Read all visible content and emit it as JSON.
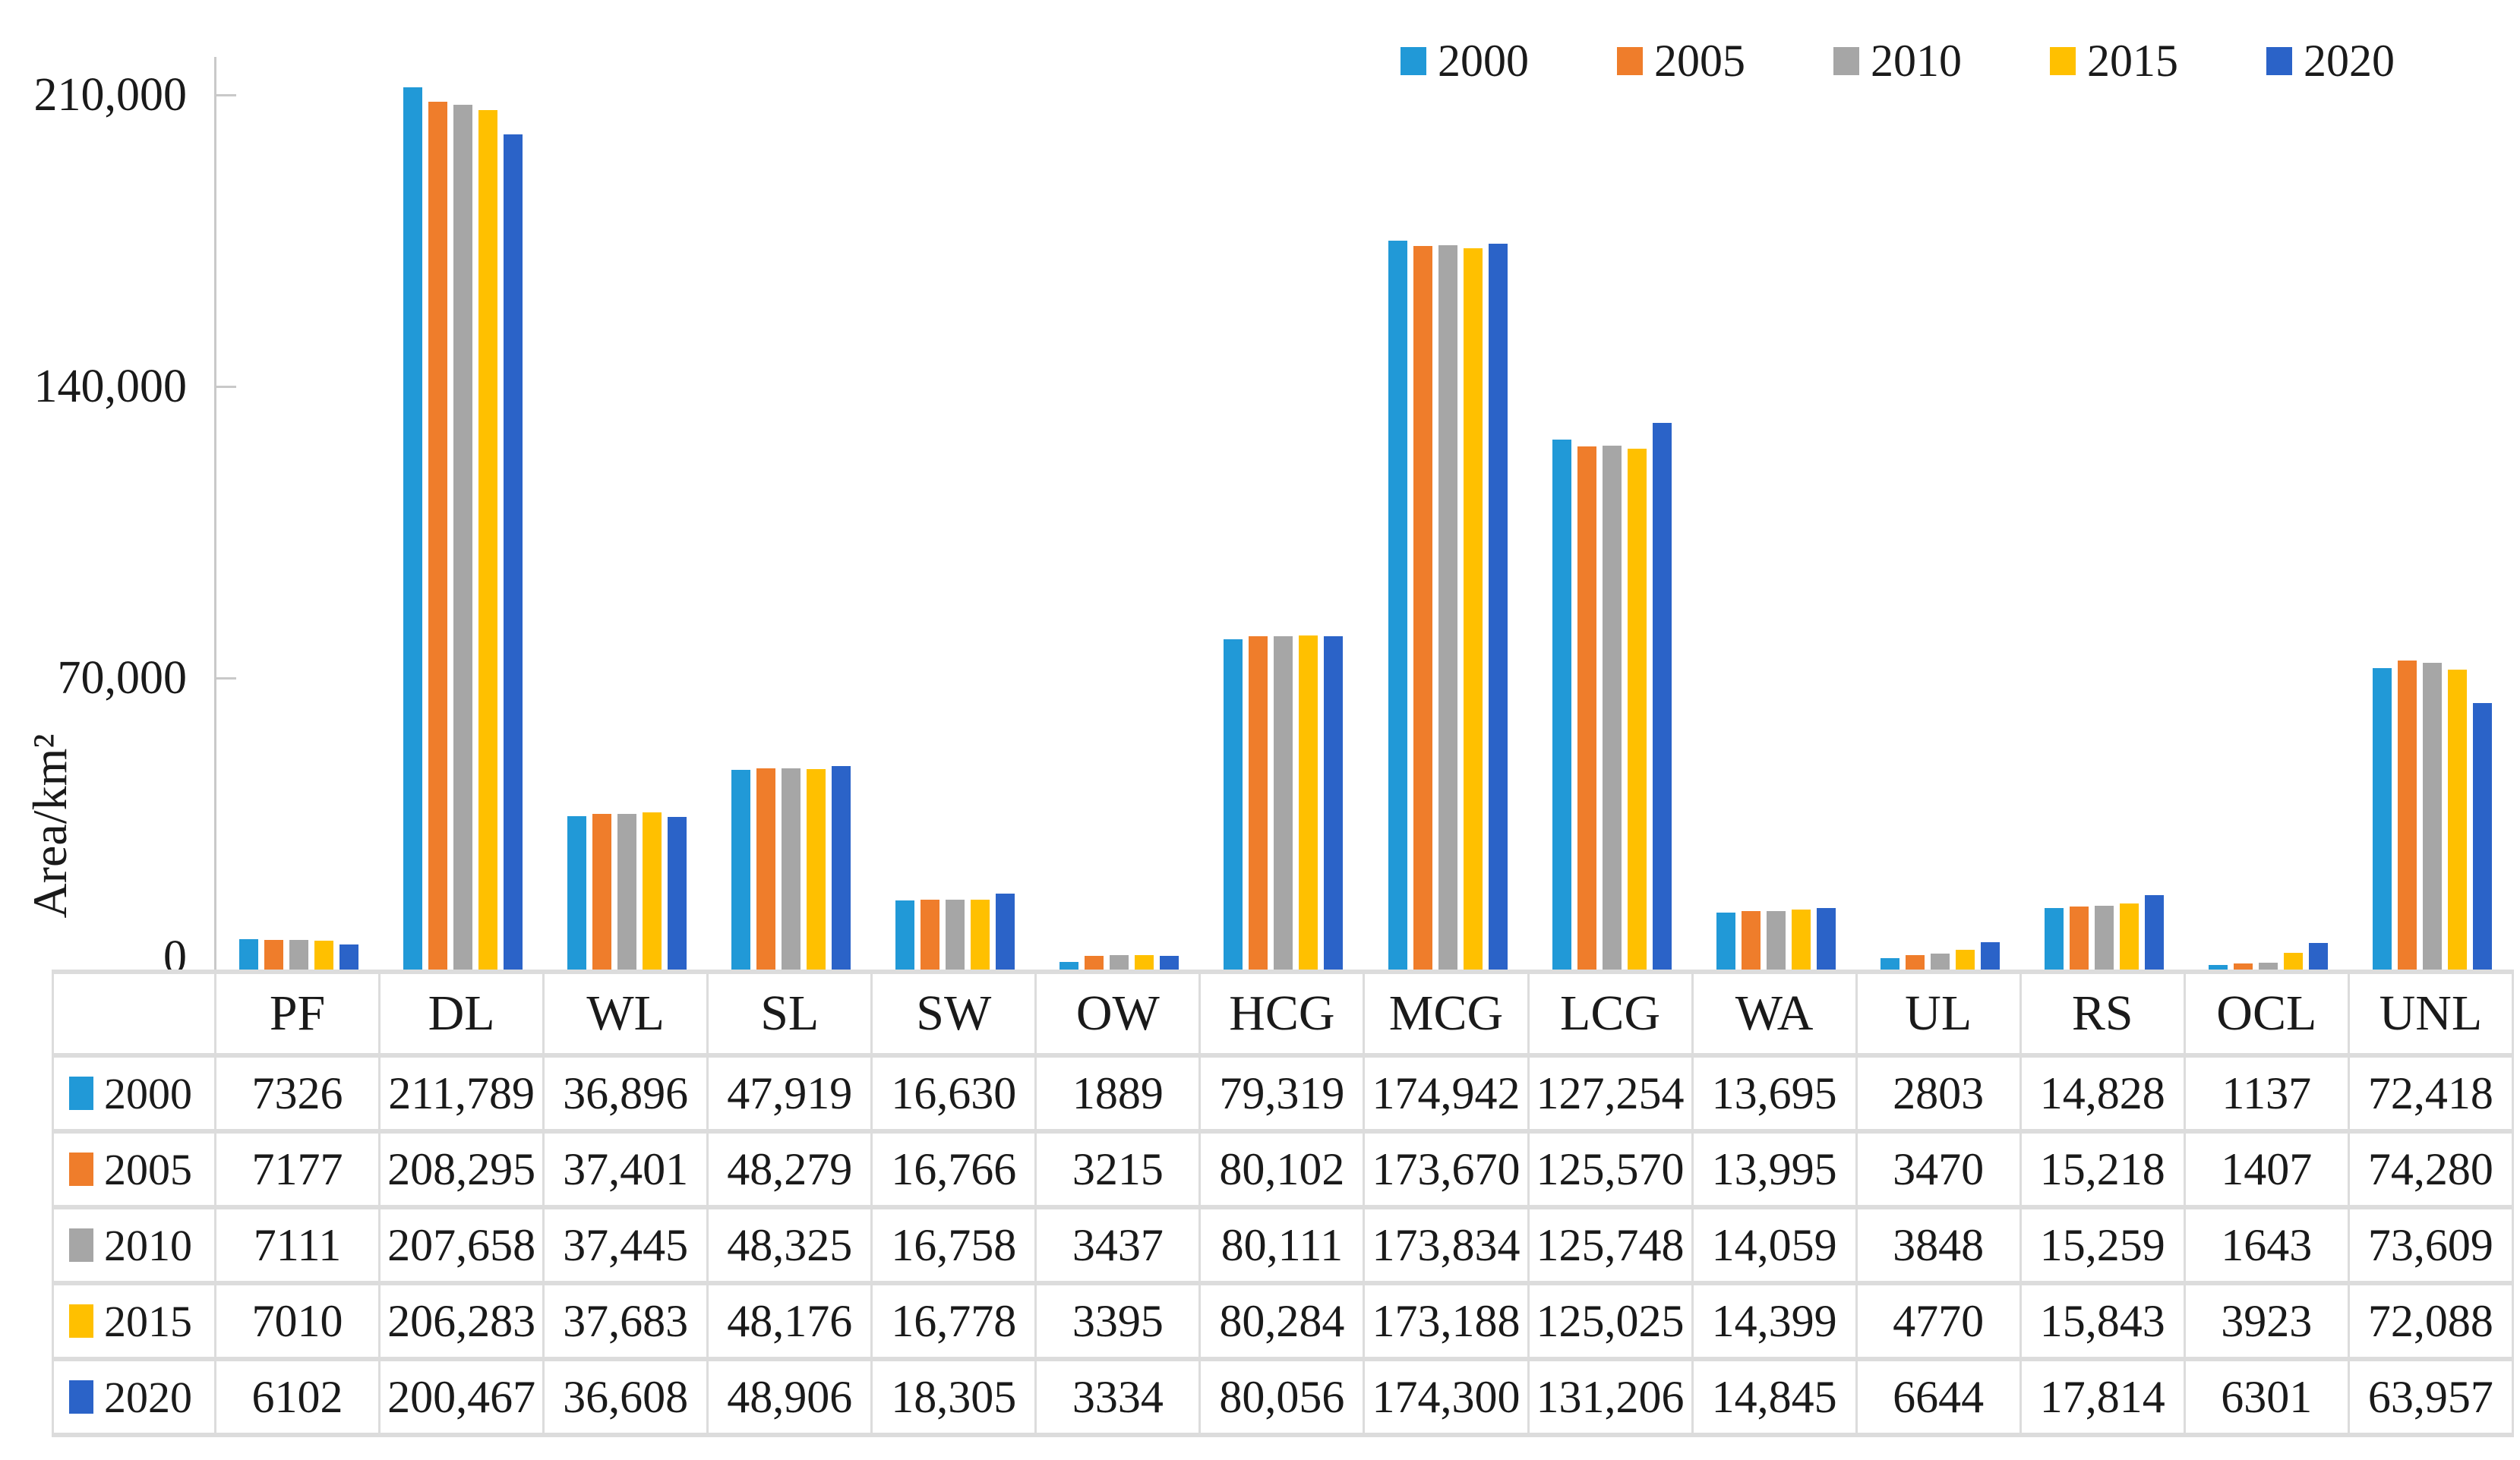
{
  "chart_data": {
    "type": "bar",
    "title": "",
    "ylabel": "Area/km²",
    "xlabel": "",
    "categories": [
      "PF",
      "DL",
      "WL",
      "SL",
      "SW",
      "OW",
      "HCG",
      "MCG",
      "LCG",
      "WA",
      "UL",
      "RS",
      "OCL",
      "UNL"
    ],
    "series": [
      {
        "name": "2000",
        "color": "#2199D7",
        "values": [
          7326,
          211789,
          36896,
          47919,
          16630,
          1889,
          79319,
          174942,
          127254,
          13695,
          2803,
          14828,
          1137,
          72418
        ]
      },
      {
        "name": "2005",
        "color": "#EF7D2B",
        "values": [
          7177,
          208295,
          37401,
          48279,
          16766,
          3215,
          80102,
          173670,
          125570,
          13995,
          3470,
          15218,
          1407,
          74280
        ]
      },
      {
        "name": "2010",
        "color": "#A6A6A6",
        "values": [
          7111,
          207658,
          37445,
          48325,
          16758,
          3437,
          80111,
          173834,
          125748,
          14059,
          3848,
          15259,
          1643,
          73609
        ]
      },
      {
        "name": "2015",
        "color": "#FFC000",
        "values": [
          7010,
          206283,
          37683,
          48176,
          16778,
          3395,
          80284,
          173188,
          125025,
          14399,
          4770,
          15843,
          3923,
          72088
        ]
      },
      {
        "name": "2020",
        "color": "#2B63C8",
        "values": [
          6102,
          200467,
          36608,
          48906,
          18305,
          3334,
          80056,
          174300,
          131206,
          14845,
          6644,
          17814,
          6301,
          63957
        ]
      }
    ],
    "ytick_values": [
      210000,
      140000,
      70000,
      0
    ],
    "ytick_labels": [
      "210,000",
      "140,000",
      "70,000",
      "0"
    ],
    "ylim": [
      0,
      219000
    ],
    "grid": false,
    "legend_position": "top-right",
    "data_table": true
  }
}
